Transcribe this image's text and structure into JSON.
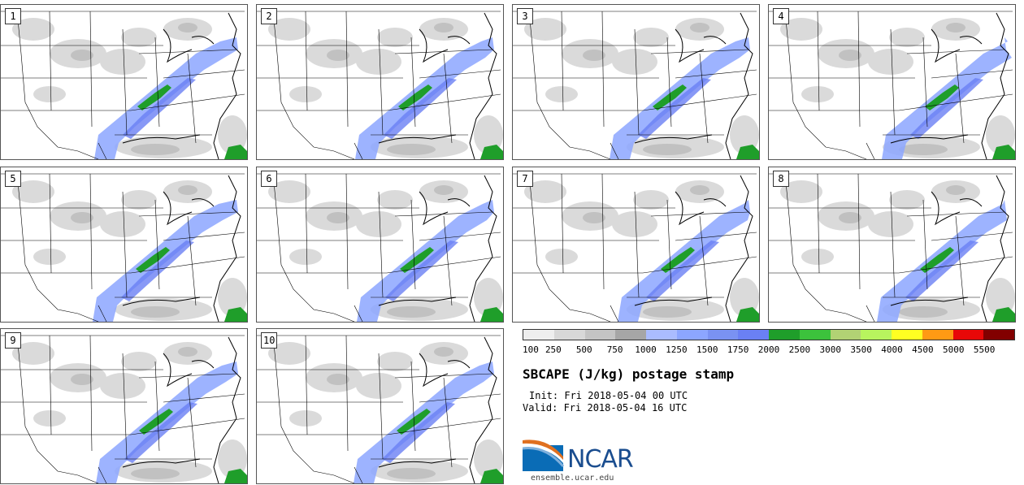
{
  "panels": [
    {
      "num": "1",
      "shift": 0
    },
    {
      "num": "2",
      "shift": 6
    },
    {
      "num": "3",
      "shift": 4
    },
    {
      "num": "4",
      "shift": 24
    },
    {
      "num": "5",
      "shift": -2
    },
    {
      "num": "6",
      "shift": 8
    },
    {
      "num": "7",
      "shift": 14
    },
    {
      "num": "8",
      "shift": 18
    },
    {
      "num": "9",
      "shift": 2
    },
    {
      "num": "10",
      "shift": 4
    }
  ],
  "legend": {
    "colors": [
      "#eeeeee",
      "#d8d8d8",
      "#c4c4c4",
      "#a6a6a6",
      "#aabcff",
      "#8ca6ff",
      "#7a92f2",
      "#6a80f4",
      "#1f9e2a",
      "#3cc23c",
      "#b2d274",
      "#b8f45e",
      "#ffff22",
      "#ff9a14",
      "#e80808",
      "#820000"
    ],
    "labels": [
      "100",
      "250",
      "500",
      "750",
      "1000",
      "1250",
      "1500",
      "1750",
      "2000",
      "2500",
      "3000",
      "3500",
      "4000",
      "4500",
      "5000",
      "5500"
    ]
  },
  "title": "SBCAPE (J/kg) postage stamp",
  "init": "Init: Fri 2018-05-04 00 UTC",
  "valid": "Valid: Fri 2018-05-04 16 UTC",
  "logo_text": "NCAR",
  "site": "ensemble.ucar.edu"
}
